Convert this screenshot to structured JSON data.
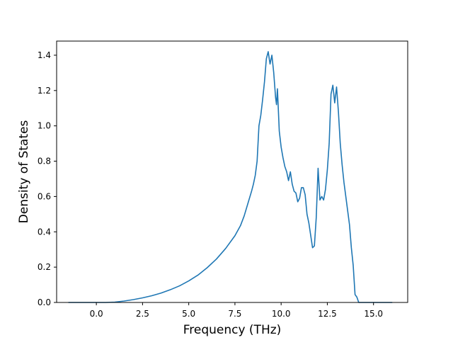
{
  "chart_data": {
    "type": "line",
    "title": "",
    "xlabel": "Frequency (THz)",
    "ylabel": "Density of States",
    "xlim": [
      -2.15,
      16.85
    ],
    "ylim": [
      0.0,
      1.48
    ],
    "x_ticks": [
      0.0,
      2.5,
      5.0,
      7.5,
      10.0,
      12.5,
      15.0
    ],
    "x_tick_labels": [
      "0.0",
      "2.5",
      "5.0",
      "7.5",
      "10.0",
      "12.5",
      "15.0"
    ],
    "y_ticks": [
      0.0,
      0.2,
      0.4,
      0.6,
      0.8,
      1.0,
      1.2,
      1.4
    ],
    "y_tick_labels": [
      "0.0",
      "0.2",
      "0.4",
      "0.6",
      "0.8",
      "1.0",
      "1.2",
      "1.4"
    ],
    "grid": false,
    "series": [
      {
        "color": "#1f77b4",
        "x": [
          -1.5,
          -1.0,
          -0.5,
          0.0,
          0.5,
          1.0,
          1.5,
          2.0,
          2.5,
          3.0,
          3.5,
          4.0,
          4.5,
          5.0,
          5.5,
          6.0,
          6.5,
          7.0,
          7.5,
          7.8,
          8.0,
          8.2,
          8.4,
          8.5,
          8.6,
          8.7,
          8.8,
          8.9,
          9.0,
          9.1,
          9.2,
          9.3,
          9.4,
          9.5,
          9.6,
          9.7,
          9.75,
          9.8,
          9.9,
          10.0,
          10.1,
          10.2,
          10.3,
          10.4,
          10.5,
          10.6,
          10.7,
          10.8,
          10.9,
          11.0,
          11.1,
          11.2,
          11.3,
          11.4,
          11.5,
          11.6,
          11.7,
          11.8,
          11.9,
          12.0,
          12.1,
          12.2,
          12.3,
          12.4,
          12.5,
          12.6,
          12.7,
          12.8,
          12.9,
          13.0,
          13.1,
          13.2,
          13.3,
          13.4,
          13.5,
          13.6,
          13.7,
          13.8,
          13.9,
          14.0,
          14.1,
          14.2,
          14.3,
          14.5,
          14.6,
          15.0,
          15.5,
          16.0
        ],
        "y": [
          0.0,
          0.0,
          0.0,
          0.0,
          0.0,
          0.002,
          0.008,
          0.016,
          0.026,
          0.038,
          0.053,
          0.072,
          0.094,
          0.122,
          0.155,
          0.197,
          0.246,
          0.306,
          0.378,
          0.435,
          0.49,
          0.56,
          0.63,
          0.67,
          0.72,
          0.8,
          1.0,
          1.06,
          1.15,
          1.25,
          1.38,
          1.42,
          1.35,
          1.4,
          1.3,
          1.16,
          1.12,
          1.21,
          0.97,
          0.88,
          0.82,
          0.77,
          0.74,
          0.69,
          0.74,
          0.67,
          0.63,
          0.62,
          0.57,
          0.59,
          0.65,
          0.65,
          0.61,
          0.5,
          0.45,
          0.38,
          0.31,
          0.32,
          0.48,
          0.76,
          0.58,
          0.6,
          0.58,
          0.64,
          0.75,
          0.9,
          1.18,
          1.23,
          1.13,
          1.22,
          1.08,
          0.9,
          0.78,
          0.68,
          0.6,
          0.52,
          0.44,
          0.31,
          0.21,
          0.045,
          0.03,
          0.0,
          0.0,
          0.0,
          0.0,
          0.0,
          0.0,
          0.0
        ]
      }
    ]
  }
}
